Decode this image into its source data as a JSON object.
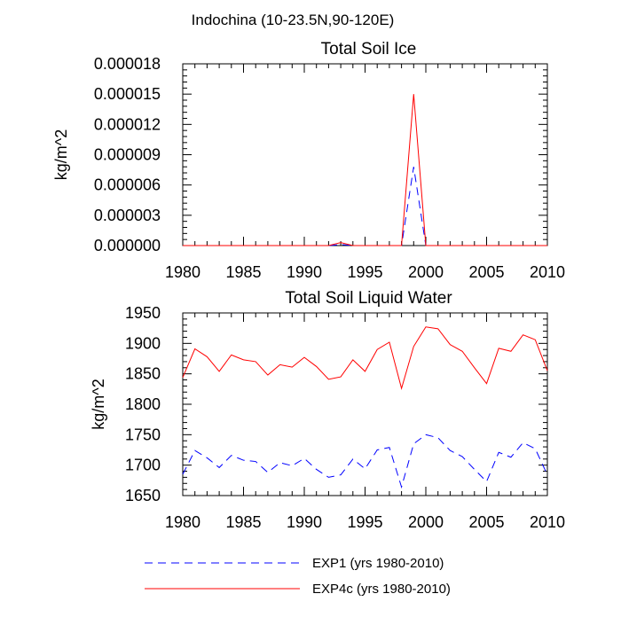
{
  "figure_title": "Indochina (10-23.5N,90-120E)",
  "legend": {
    "items": [
      {
        "label": "EXP1 (yrs 1980-2010)",
        "color": "#0000ff",
        "dash": "dashed"
      },
      {
        "label": "EXP4c (yrs 1980-2010)",
        "color": "#ff0000",
        "dash": "solid"
      }
    ]
  },
  "chart_data": [
    {
      "type": "line",
      "title": "Total Soil Ice",
      "xlabel": "",
      "ylabel": "kg/m^2",
      "xlim": [
        1980,
        2010
      ],
      "ylim": [
        0,
        1.8e-05
      ],
      "xticks": [
        1980,
        1985,
        1990,
        1995,
        2000,
        2005,
        2010
      ],
      "yticks": [
        0,
        3e-06,
        6e-06,
        9e-06,
        1.2e-05,
        1.5e-05,
        1.8e-05
      ],
      "ytick_labels": [
        "0.000000",
        "0.000003",
        "0.000006",
        "0.000009",
        "0.000012",
        "0.000015",
        "0.000018"
      ],
      "xtick_labels": [
        "1980",
        "1985",
        "1990",
        "1995",
        "2000",
        "2005",
        "2010"
      ],
      "x": [
        1980,
        1981,
        1982,
        1983,
        1984,
        1985,
        1986,
        1987,
        1988,
        1989,
        1990,
        1991,
        1992,
        1993,
        1994,
        1995,
        1996,
        1997,
        1998,
        1999,
        2000,
        2001,
        2002,
        2003,
        2004,
        2005,
        2006,
        2007,
        2008,
        2009,
        2010
      ],
      "series": [
        {
          "name": "EXP1",
          "color": "#0000ff",
          "dash": "dashed",
          "values": [
            0,
            0,
            0,
            0,
            0,
            0,
            0,
            0,
            0,
            0,
            0,
            0,
            0,
            1e-07,
            0,
            0,
            0,
            0,
            0,
            7.8e-06,
            0,
            0,
            0,
            0,
            0,
            0,
            0,
            0,
            0,
            0,
            0
          ]
        },
        {
          "name": "EXP4c",
          "color": "#ff0000",
          "dash": "solid",
          "values": [
            0,
            0,
            0,
            0,
            0,
            0,
            0,
            0,
            0,
            0,
            0,
            0,
            0,
            3e-07,
            0,
            0,
            0,
            0,
            0,
            1.5e-05,
            0,
            0,
            0,
            0,
            0,
            0,
            0,
            0,
            0,
            0,
            0
          ]
        }
      ],
      "grid": false
    },
    {
      "type": "line",
      "title": "Total Soil Liquid Water",
      "xlabel": "",
      "ylabel": "kg/m^2",
      "xlim": [
        1980,
        2010
      ],
      "ylim": [
        1650,
        1950
      ],
      "xticks": [
        1980,
        1985,
        1990,
        1995,
        2000,
        2005,
        2010
      ],
      "yticks": [
        1650,
        1700,
        1750,
        1800,
        1850,
        1900,
        1950
      ],
      "ytick_labels": [
        "1650",
        "1700",
        "1750",
        "1800",
        "1850",
        "1900",
        "1950"
      ],
      "xtick_labels": [
        "1980",
        "1985",
        "1990",
        "1995",
        "2000",
        "2005",
        "2010"
      ],
      "x": [
        1980,
        1981,
        1982,
        1983,
        1984,
        1985,
        1986,
        1987,
        1988,
        1989,
        1990,
        1991,
        1992,
        1993,
        1994,
        1995,
        1996,
        1997,
        1998,
        1999,
        2000,
        2001,
        2002,
        2003,
        2004,
        2005,
        2006,
        2007,
        2008,
        2009,
        2010
      ],
      "series": [
        {
          "name": "EXP1",
          "color": "#0000ff",
          "dash": "dashed",
          "values": [
            1685,
            1724,
            1712,
            1696,
            1716,
            1708,
            1706,
            1688,
            1704,
            1699,
            1711,
            1693,
            1680,
            1684,
            1710,
            1694,
            1725,
            1729,
            1664,
            1735,
            1750,
            1745,
            1724,
            1714,
            1693,
            1673,
            1721,
            1713,
            1737,
            1727,
            1684
          ]
        },
        {
          "name": "EXP4c",
          "color": "#ff0000",
          "dash": "solid",
          "values": [
            1844,
            1891,
            1878,
            1854,
            1881,
            1873,
            1870,
            1848,
            1865,
            1861,
            1877,
            1862,
            1841,
            1845,
            1873,
            1854,
            1890,
            1902,
            1826,
            1895,
            1927,
            1924,
            1898,
            1887,
            1860,
            1834,
            1892,
            1887,
            1914,
            1906,
            1855
          ]
        }
      ],
      "grid": false
    }
  ]
}
